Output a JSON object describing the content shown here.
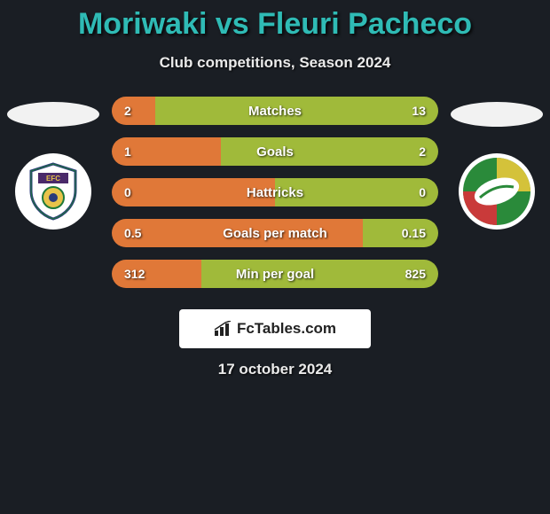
{
  "title": "Moriwaki vs Fleuri Pacheco",
  "subtitle": "Club competitions, Season 2024",
  "date": "17 october 2024",
  "brand": "FcTables.com",
  "colors": {
    "title": "#2fbbb5",
    "bar_left": "#e07838",
    "bar_right": "#a0ba3a",
    "background": "#1a1e24",
    "text": "#eaeaea"
  },
  "stats": [
    {
      "label": "Matches",
      "left_val": "2",
      "right_val": "13",
      "left_pct": 13.3,
      "right_pct": 86.7
    },
    {
      "label": "Goals",
      "left_val": "1",
      "right_val": "2",
      "left_pct": 33.3,
      "right_pct": 66.7
    },
    {
      "label": "Hattricks",
      "left_val": "0",
      "right_val": "0",
      "left_pct": 50,
      "right_pct": 50
    },
    {
      "label": "Goals per match",
      "left_val": "0.5",
      "right_val": "0.15",
      "left_pct": 76.9,
      "right_pct": 23.1
    },
    {
      "label": "Min per goal",
      "left_val": "312",
      "right_val": "825",
      "left_pct": 27.4,
      "right_pct": 72.6
    }
  ]
}
